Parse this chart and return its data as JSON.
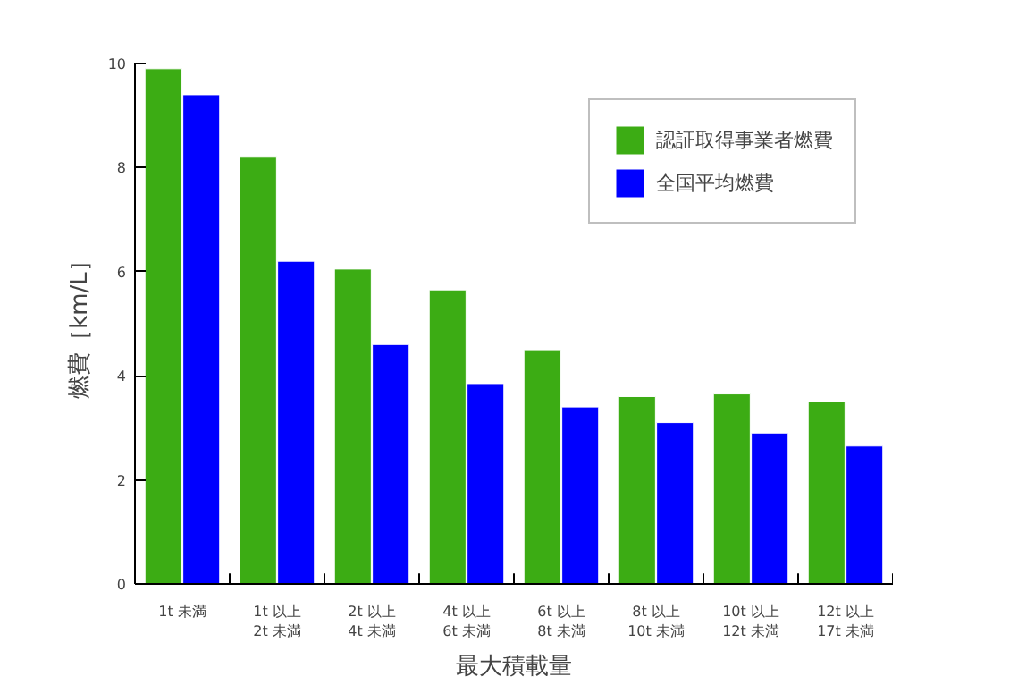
{
  "chart_data": {
    "type": "bar",
    "xlabel": "最大積載量",
    "ylabel": "燃費［km/L］",
    "categories": [
      "1t 未満",
      "1t 以上\n2t 未満",
      "2t 以上\n4t 未満",
      "4t 以上\n6t 未満",
      "6t 以上\n8t 未満",
      "8t 以上\n10t 未満",
      "10t 以上\n12t 未満",
      "12t 以上\n17t 未満"
    ],
    "series": [
      {
        "name": "認証取得事業者燃費",
        "color": "#3cac14",
        "values": [
          9.9,
          8.2,
          6.05,
          5.65,
          4.5,
          3.6,
          3.65,
          3.5
        ]
      },
      {
        "name": "全国平均燃費",
        "color": "#0000ff",
        "values": [
          9.4,
          6.2,
          4.6,
          3.85,
          3.4,
          3.1,
          2.9,
          2.65
        ]
      }
    ],
    "ylim": [
      0,
      10
    ],
    "yticks": [
      0,
      2,
      4,
      6,
      8,
      10
    ],
    "grid": false,
    "legend": "top right"
  }
}
